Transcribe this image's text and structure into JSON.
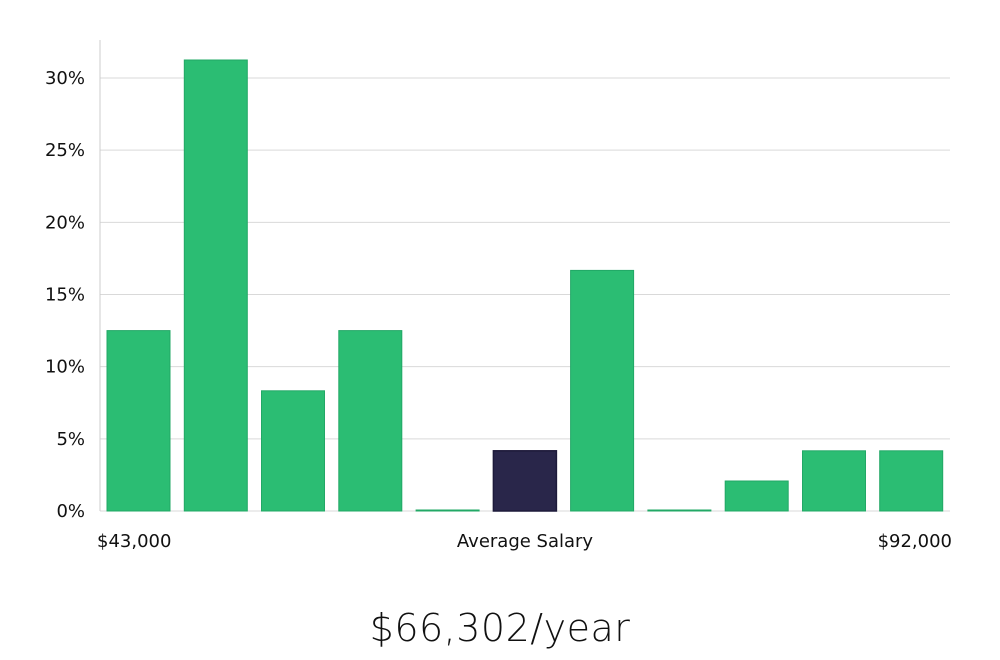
{
  "chart_data": {
    "type": "bar",
    "values": [
      12.5,
      31.25,
      8.33,
      12.5,
      0,
      4.17,
      16.67,
      0,
      2.08,
      4.17,
      4.17
    ],
    "highlight_index": 5,
    "ylim": [
      0,
      32
    ],
    "yticks": [
      "0%",
      "5%",
      "10%",
      "15%",
      "20%",
      "25%",
      "30%"
    ],
    "ytick_values": [
      0,
      5,
      10,
      15,
      20,
      25,
      30
    ],
    "xlabel_left": "$43,000",
    "xlabel_center": "Average Salary",
    "xlabel_right": "$92,000",
    "grid": true,
    "colors": {
      "bar": "#2bbd73",
      "highlight": "#29264a",
      "grid": "#d9d9d9",
      "axis": "#cccccc"
    }
  },
  "salary_text": "$66,302/year"
}
